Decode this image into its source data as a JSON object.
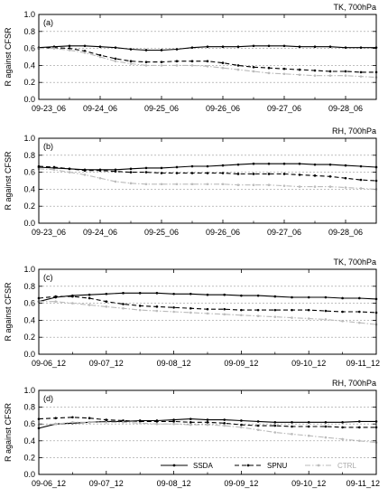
{
  "chart_data": [
    {
      "type": "line",
      "panel_label": "(a)",
      "title": "TK, 700hPa",
      "ylabel": "R against CFSR",
      "ylim": [
        0.0,
        1.0
      ],
      "yticks": [
        "0.0",
        "0.2",
        "0.4",
        "0.6",
        "0.8",
        "1.0"
      ],
      "xticks": [
        "09-23_06",
        "09-24_06",
        "09-25_06",
        "09-26_06",
        "09-27_06",
        "09-28_06"
      ],
      "grid": "horizontal dashed",
      "x": [
        0,
        0.5,
        1,
        1.5,
        2,
        2.5,
        3,
        3.5,
        4,
        4.5,
        5,
        5.5,
        6,
        6.5,
        7,
        7.5,
        8,
        8.5,
        9,
        9.5,
        10,
        10.5,
        11
      ],
      "series": [
        {
          "name": "SSDA",
          "style": "solid",
          "color": "#000000",
          "values": [
            0.61,
            0.62,
            0.63,
            0.63,
            0.62,
            0.61,
            0.59,
            0.58,
            0.58,
            0.59,
            0.61,
            0.62,
            0.62,
            0.62,
            0.63,
            0.63,
            0.63,
            0.62,
            0.62,
            0.62,
            0.61,
            0.61,
            0.61
          ]
        },
        {
          "name": "SPNU",
          "style": "dashed",
          "color": "#000000",
          "values": [
            0.6,
            0.61,
            0.6,
            0.57,
            0.52,
            0.48,
            0.45,
            0.44,
            0.44,
            0.45,
            0.45,
            0.45,
            0.43,
            0.4,
            0.38,
            0.37,
            0.36,
            0.35,
            0.34,
            0.33,
            0.33,
            0.32,
            0.32
          ]
        },
        {
          "name": "CTRL",
          "style": "dashdot",
          "color": "#bbbbbb",
          "values": [
            0.6,
            0.6,
            0.58,
            0.55,
            0.5,
            0.45,
            0.42,
            0.4,
            0.4,
            0.4,
            0.4,
            0.39,
            0.37,
            0.35,
            0.33,
            0.31,
            0.3,
            0.29,
            0.28,
            0.28,
            0.28,
            0.27,
            0.26
          ]
        }
      ]
    },
    {
      "type": "line",
      "panel_label": "(b)",
      "title": "RH, 700hPa",
      "ylabel": "R against CFSR",
      "ylim": [
        0.0,
        1.0
      ],
      "yticks": [
        "0.0",
        "0.2",
        "0.4",
        "0.6",
        "0.8",
        "1.0"
      ],
      "xticks": [
        "09-23_06",
        "09-24_06",
        "09-25_06",
        "09-26_06",
        "09-27_06",
        "09-28_06"
      ],
      "grid": "horizontal dashed",
      "x": [
        0,
        0.5,
        1,
        1.5,
        2,
        2.5,
        3,
        3.5,
        4,
        4.5,
        5,
        5.5,
        6,
        6.5,
        7,
        7.5,
        8,
        8.5,
        9,
        9.5,
        10,
        10.5,
        11
      ],
      "series": [
        {
          "name": "SSDA",
          "style": "solid",
          "color": "#000000",
          "values": [
            0.66,
            0.65,
            0.64,
            0.63,
            0.63,
            0.63,
            0.64,
            0.65,
            0.65,
            0.66,
            0.67,
            0.67,
            0.68,
            0.69,
            0.7,
            0.7,
            0.7,
            0.7,
            0.69,
            0.69,
            0.68,
            0.67,
            0.66
          ]
        },
        {
          "name": "SPNU",
          "style": "dashed",
          "color": "#000000",
          "values": [
            0.67,
            0.66,
            0.64,
            0.62,
            0.62,
            0.61,
            0.6,
            0.6,
            0.59,
            0.59,
            0.59,
            0.59,
            0.59,
            0.58,
            0.58,
            0.58,
            0.58,
            0.57,
            0.56,
            0.55,
            0.53,
            0.51,
            0.5
          ]
        },
        {
          "name": "CTRL",
          "style": "dashdot",
          "color": "#bbbbbb",
          "values": [
            0.64,
            0.63,
            0.6,
            0.57,
            0.53,
            0.49,
            0.47,
            0.46,
            0.46,
            0.46,
            0.46,
            0.46,
            0.46,
            0.45,
            0.45,
            0.45,
            0.44,
            0.43,
            0.43,
            0.43,
            0.42,
            0.41,
            0.4
          ]
        }
      ]
    },
    {
      "type": "line",
      "panel_label": "(c)",
      "title": "TK, 700hPa",
      "ylabel": "R against CFSR",
      "ylim": [
        0.0,
        1.0
      ],
      "yticks": [
        "0.0",
        "0.2",
        "0.4",
        "0.6",
        "0.8",
        "1.0"
      ],
      "xticks": [
        "09-06_12",
        "09-07_12",
        "09-08_12",
        "09-09_12",
        "09-10_12",
        "09-11_12"
      ],
      "grid": "horizontal dashed",
      "x": [
        0,
        0.5,
        1,
        1.5,
        2,
        2.5,
        3,
        3.5,
        4,
        4.5,
        5,
        5.5,
        6,
        6.5,
        7,
        7.5,
        8,
        8.5,
        9,
        9.5,
        10
      ],
      "series": [
        {
          "name": "SSDA",
          "style": "solid",
          "color": "#000000",
          "values": [
            0.62,
            0.67,
            0.69,
            0.7,
            0.71,
            0.72,
            0.72,
            0.72,
            0.71,
            0.71,
            0.7,
            0.7,
            0.69,
            0.69,
            0.68,
            0.67,
            0.67,
            0.67,
            0.66,
            0.66,
            0.65
          ]
        },
        {
          "name": "SPNU",
          "style": "dashed",
          "color": "#000000",
          "values": [
            0.66,
            0.68,
            0.68,
            0.66,
            0.62,
            0.59,
            0.57,
            0.56,
            0.55,
            0.54,
            0.53,
            0.53,
            0.52,
            0.52,
            0.52,
            0.52,
            0.52,
            0.51,
            0.5,
            0.5,
            0.49
          ]
        },
        {
          "name": "CTRL",
          "style": "dashdot",
          "color": "#bbbbbb",
          "values": [
            0.62,
            0.62,
            0.6,
            0.58,
            0.56,
            0.54,
            0.52,
            0.51,
            0.5,
            0.49,
            0.48,
            0.47,
            0.46,
            0.45,
            0.44,
            0.43,
            0.42,
            0.41,
            0.39,
            0.37,
            0.35
          ]
        }
      ]
    },
    {
      "type": "line",
      "panel_label": "(d)",
      "title": "RH, 700hPa",
      "ylabel": "R against CFSR",
      "ylim": [
        0.0,
        1.0
      ],
      "yticks": [
        "0.0",
        "0.2",
        "0.4",
        "0.6",
        "0.8",
        "1.0"
      ],
      "xticks": [
        "09-06_12",
        "09-07_12",
        "09-08_12",
        "09-09_12",
        "09-10_12",
        "09-11_12"
      ],
      "grid": "horizontal dashed",
      "legend_position": "bottom",
      "x": [
        0,
        0.5,
        1,
        1.5,
        2,
        2.5,
        3,
        3.5,
        4,
        4.5,
        5,
        5.5,
        6,
        6.5,
        7,
        7.5,
        8,
        8.5,
        9,
        9.5,
        10
      ],
      "series": [
        {
          "name": "SSDA",
          "style": "solid",
          "color": "#000000",
          "values": [
            0.55,
            0.6,
            0.61,
            0.62,
            0.63,
            0.63,
            0.64,
            0.64,
            0.65,
            0.66,
            0.65,
            0.65,
            0.64,
            0.63,
            0.62,
            0.62,
            0.62,
            0.62,
            0.62,
            0.63,
            0.63
          ]
        },
        {
          "name": "SPNU",
          "style": "dashed",
          "color": "#000000",
          "values": [
            0.66,
            0.67,
            0.68,
            0.67,
            0.65,
            0.64,
            0.63,
            0.63,
            0.63,
            0.62,
            0.62,
            0.61,
            0.59,
            0.58,
            0.58,
            0.57,
            0.57,
            0.57,
            0.56,
            0.56,
            0.56
          ]
        },
        {
          "name": "CTRL",
          "style": "dashdot",
          "color": "#bbbbbb",
          "values": [
            0.59,
            0.6,
            0.62,
            0.62,
            0.62,
            0.62,
            0.61,
            0.6,
            0.6,
            0.59,
            0.59,
            0.58,
            0.56,
            0.53,
            0.5,
            0.48,
            0.46,
            0.44,
            0.42,
            0.4,
            0.38
          ]
        }
      ]
    }
  ]
}
